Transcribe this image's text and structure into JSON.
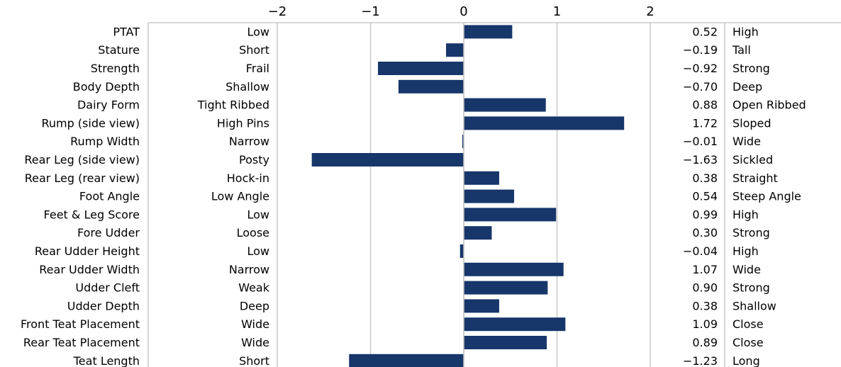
{
  "chart_data": {
    "type": "bar",
    "orientation": "horizontal",
    "xlim": [
      -2,
      2
    ],
    "x_ticks": [
      -2,
      -1,
      0,
      1,
      2
    ],
    "x_tick_labels": [
      "−2",
      "−1",
      "0",
      "1",
      "2"
    ],
    "grid": true,
    "bar_color": "#17366a",
    "grid_color": "#c8c8c8",
    "rows": [
      {
        "trait": "PTAT",
        "low": "Low",
        "value": 0.52,
        "value_label": "0.52",
        "high": "High"
      },
      {
        "trait": "Stature",
        "low": "Short",
        "value": -0.19,
        "value_label": "−0.19",
        "high": "Tall"
      },
      {
        "trait": "Strength",
        "low": "Frail",
        "value": -0.92,
        "value_label": "−0.92",
        "high": "Strong"
      },
      {
        "trait": "Body Depth",
        "low": "Shallow",
        "value": -0.7,
        "value_label": "−0.70",
        "high": "Deep"
      },
      {
        "trait": "Dairy Form",
        "low": "Tight Ribbed",
        "value": 0.88,
        "value_label": "0.88",
        "high": "Open Ribbed"
      },
      {
        "trait": "Rump (side view)",
        "low": "High Pins",
        "value": 1.72,
        "value_label": "1.72",
        "high": "Sloped"
      },
      {
        "trait": "Rump Width",
        "low": "Narrow",
        "value": -0.01,
        "value_label": "−0.01",
        "high": "Wide"
      },
      {
        "trait": "Rear Leg (side view)",
        "low": "Posty",
        "value": -1.63,
        "value_label": "−1.63",
        "high": "Sickled"
      },
      {
        "trait": "Rear Leg (rear view)",
        "low": "Hock-in",
        "value": 0.38,
        "value_label": "0.38",
        "high": "Straight"
      },
      {
        "trait": "Foot Angle",
        "low": "Low Angle",
        "value": 0.54,
        "value_label": "0.54",
        "high": "Steep Angle"
      },
      {
        "trait": "Feet & Leg Score",
        "low": "Low",
        "value": 0.99,
        "value_label": "0.99",
        "high": "High"
      },
      {
        "trait": "Fore Udder",
        "low": "Loose",
        "value": 0.3,
        "value_label": "0.30",
        "high": "Strong"
      },
      {
        "trait": "Rear Udder Height",
        "low": "Low",
        "value": -0.04,
        "value_label": "−0.04",
        "high": "High"
      },
      {
        "trait": "Rear Udder Width",
        "low": "Narrow",
        "value": 1.07,
        "value_label": "1.07",
        "high": "Wide"
      },
      {
        "trait": "Udder Cleft",
        "low": "Weak",
        "value": 0.9,
        "value_label": "0.90",
        "high": "Strong"
      },
      {
        "trait": "Udder Depth",
        "low": "Deep",
        "value": 0.38,
        "value_label": "0.38",
        "high": "Shallow"
      },
      {
        "trait": "Front Teat Placement",
        "low": "Wide",
        "value": 1.09,
        "value_label": "1.09",
        "high": "Close"
      },
      {
        "trait": "Rear Teat Placement",
        "low": "Wide",
        "value": 0.89,
        "value_label": "0.89",
        "high": "Close"
      },
      {
        "trait": "Teat Length",
        "low": "Short",
        "value": -1.23,
        "value_label": "−1.23",
        "high": "Long"
      }
    ]
  }
}
